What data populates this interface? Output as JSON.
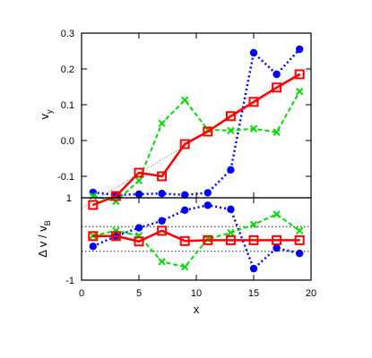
{
  "chart_data": [
    {
      "panel": "top",
      "type": "line",
      "xlabel": "x",
      "ylabel_main": "v",
      "ylabel_sub": "y",
      "xlim": [
        0,
        20
      ],
      "ylim": [
        -0.16,
        0.3
      ],
      "yticks": [
        -0.1,
        0.0,
        0.1,
        0.2,
        0.3
      ],
      "ytick_labels": [
        "-0.1",
        "0.0",
        "0.1",
        "0.2",
        "0.3"
      ],
      "bottom_corner_label": "1",
      "grid": false,
      "series": [
        {
          "color": "#0000ff",
          "marker": "circle",
          "line": "dotted",
          "x": [
            1,
            3,
            5,
            7,
            9,
            11,
            13,
            15,
            17,
            19
          ],
          "y": [
            -0.145,
            -0.152,
            -0.15,
            -0.148,
            -0.152,
            -0.146,
            -0.082,
            0.245,
            0.185,
            0.255
          ]
        },
        {
          "color": "#00dd00",
          "marker": "x",
          "line": "dashed",
          "x": [
            1,
            3,
            5,
            7,
            9,
            11,
            13,
            15,
            17,
            19
          ],
          "y": [
            -0.155,
            -0.17,
            -0.112,
            0.048,
            0.113,
            0.03,
            0.028,
            0.033,
            0.023,
            0.137
          ]
        },
        {
          "color": "#ff0000",
          "marker": "square",
          "line": "solid",
          "x": [
            1,
            3,
            5,
            7,
            9,
            11,
            13,
            15,
            17,
            19
          ],
          "y": [
            -0.18,
            -0.155,
            -0.09,
            -0.1,
            -0.01,
            0.025,
            0.068,
            0.108,
            0.148,
            0.185
          ]
        }
      ],
      "reference_line": {
        "color": "#555555",
        "line": "dotted",
        "x": [
          0,
          20
        ],
        "y": [
          -0.19,
          0.2
        ]
      }
    },
    {
      "panel": "bottom",
      "type": "line",
      "xlabel": "x",
      "ylabel_main": "Δ v / v",
      "ylabel_sub": "B",
      "xlim": [
        0,
        20
      ],
      "ylim": [
        -1,
        1
      ],
      "yticks": [
        -1
      ],
      "ytick_labels": [
        "-1"
      ],
      "xticks": [
        0,
        5,
        10,
        15,
        20
      ],
      "xtick_labels": [
        "0",
        "5",
        "10",
        "15",
        "20"
      ],
      "hlines": [
        0.3,
        -0.3
      ],
      "grid": false,
      "series": [
        {
          "color": "#0000ff",
          "marker": "circle",
          "line": "dotted",
          "x": [
            1,
            3,
            5,
            7,
            9,
            11,
            13,
            15,
            17,
            19
          ],
          "y": [
            -0.18,
            0.07,
            0.27,
            0.44,
            0.7,
            0.82,
            0.72,
            -0.72,
            -0.22,
            -0.35
          ]
        },
        {
          "color": "#00dd00",
          "marker": "x",
          "line": "dashed",
          "x": [
            1,
            3,
            5,
            7,
            9,
            11,
            13,
            15,
            17,
            19
          ],
          "y": [
            0.08,
            0.2,
            0.08,
            -0.55,
            -0.68,
            0.0,
            0.15,
            0.35,
            0.6,
            0.2
          ]
        },
        {
          "color": "#ff0000",
          "marker": "square",
          "line": "solid",
          "x": [
            1,
            3,
            5,
            7,
            9,
            11,
            13,
            15,
            17,
            19
          ],
          "y": [
            0.07,
            0.07,
            -0.06,
            0.2,
            -0.05,
            -0.03,
            -0.03,
            -0.03,
            -0.03,
            -0.03
          ]
        }
      ]
    }
  ]
}
